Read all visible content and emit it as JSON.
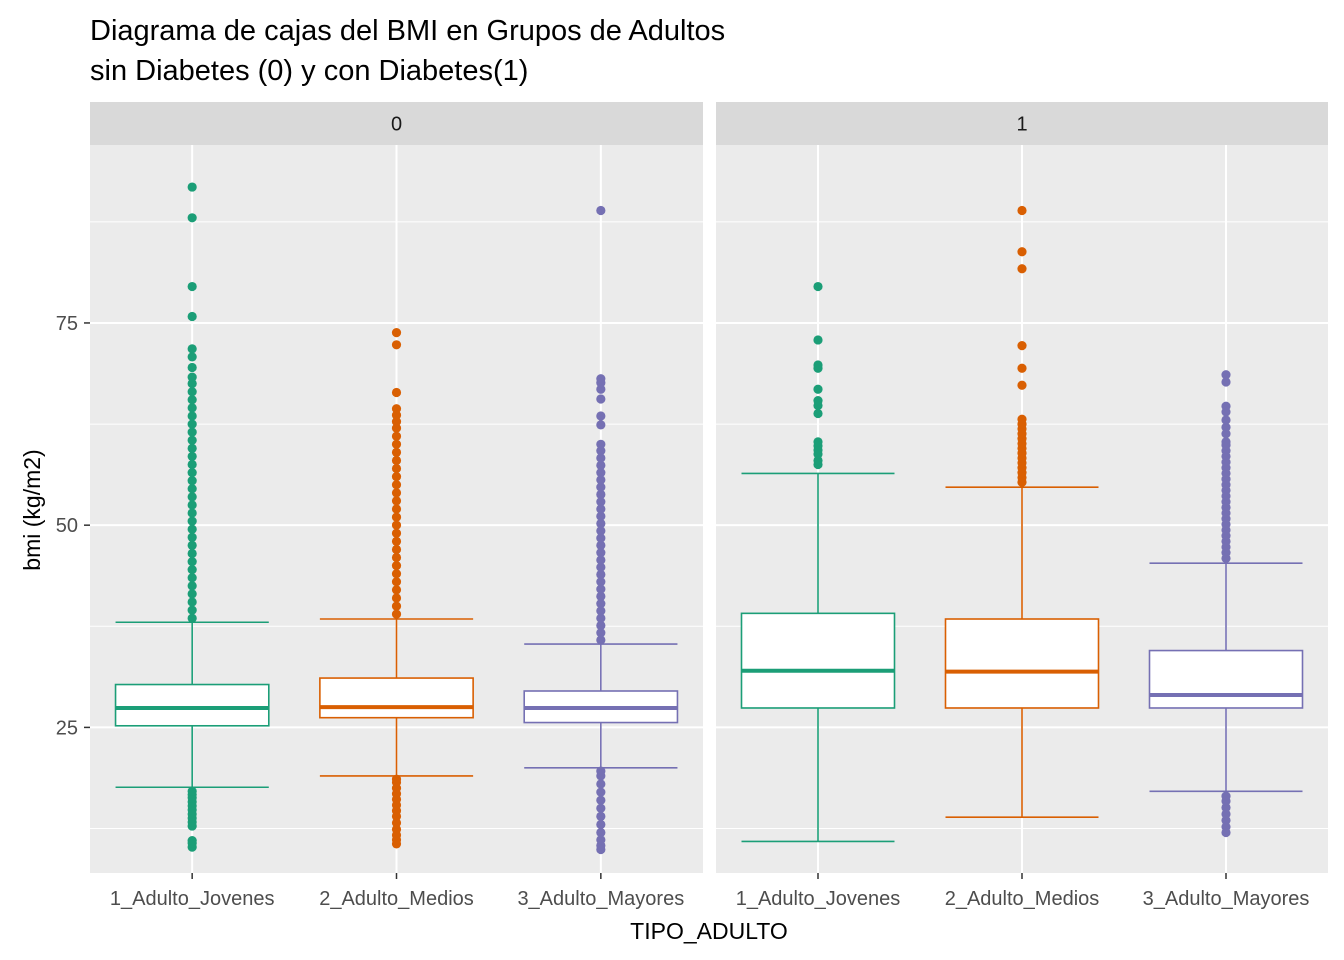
{
  "chart_data": {
    "type": "boxplot",
    "title_lines": [
      "Diagrama de cajas del BMI en Grupos de Adultos",
      "sin Diabetes (0) y con Diabetes(1)"
    ],
    "xlabel": "TIPO_ADULTO",
    "ylabel": "bmi (kg/m2)",
    "ylim": [
      7,
      97
    ],
    "yticks": [
      25,
      50,
      75
    ],
    "grid": true,
    "legend": "none",
    "categories": [
      "1_Adulto_Jovenes",
      "2_Adulto_Medios",
      "3_Adulto_Mayores"
    ],
    "colors": [
      "#1b9e77",
      "#d95f02",
      "#7570b3"
    ],
    "panels": [
      {
        "label": "0",
        "boxes": [
          {
            "category": "1_Adulto_Jovenes",
            "whisker_low": 17.6,
            "q1": 25.2,
            "median": 27.4,
            "q3": 30.3,
            "whisker_high": 38.0,
            "outliers_low": [
              10.2,
              10.7,
              11.0,
              12.8,
              13.3,
              13.8,
              14.3,
              14.8,
              15.3,
              15.8,
              16.3,
              16.7,
              17.1
            ],
            "outliers_high": [
              38.5,
              39.5,
              40.5,
              41.5,
              42.5,
              43.5,
              44.5,
              45.5,
              46.5,
              47.5,
              48.5,
              49.5,
              50.5,
              51.5,
              52.5,
              53.5,
              54.5,
              55.5,
              56.5,
              57.5,
              58.5,
              59.5,
              60.5,
              61.5,
              62.5,
              63.5,
              64.5,
              65.5,
              66.5,
              67.5,
              68.3,
              69.5,
              70.8,
              71.8,
              75.8,
              79.5,
              88.0,
              91.8
            ]
          },
          {
            "category": "2_Adulto_Medios",
            "whisker_low": 19.0,
            "q1": 26.2,
            "median": 27.5,
            "q3": 31.1,
            "whisker_high": 38.4,
            "outliers_low": [
              10.6,
              11.1,
              11.7,
              12.4,
              13.2,
              14.0,
              14.7,
              15.4,
              16.1,
              16.8,
              17.5,
              18.2,
              18.6
            ],
            "outliers_high": [
              39.0,
              40.0,
              41.0,
              42.0,
              43.0,
              44.0,
              45.0,
              46.0,
              47.0,
              48.0,
              49.0,
              50.0,
              51.0,
              52.0,
              53.0,
              54.0,
              55.0,
              56.0,
              57.0,
              58.0,
              59.0,
              60.0,
              61.0,
              62.0,
              62.8,
              63.6,
              64.4,
              66.4,
              72.3,
              73.8
            ]
          },
          {
            "category": "3_Adulto_Mayores",
            "whisker_low": 20.0,
            "q1": 25.6,
            "median": 27.4,
            "q3": 29.5,
            "whisker_high": 35.3,
            "outliers_low": [
              9.9,
              10.4,
              11.1,
              12.0,
              13.0,
              14.0,
              15.0,
              16.0,
              17.0,
              18.0,
              19.0,
              19.6
            ],
            "outliers_high": [
              35.8,
              36.7,
              37.6,
              38.5,
              39.4,
              40.3,
              41.2,
              42.1,
              43.0,
              43.9,
              44.8,
              45.7,
              46.6,
              47.5,
              48.4,
              49.3,
              50.2,
              51.1,
              52.0,
              52.9,
              53.8,
              54.7,
              55.6,
              56.5,
              57.4,
              58.3,
              59.2,
              60.0,
              62.4,
              63.5,
              65.6,
              66.8,
              67.6,
              68.1,
              88.9
            ]
          }
        ]
      },
      {
        "label": "1",
        "boxes": [
          {
            "category": "1_Adulto_Jovenes",
            "whisker_low": 10.9,
            "q1": 27.4,
            "median": 32.0,
            "q3": 39.1,
            "whisker_high": 56.4,
            "outliers_low": [],
            "outliers_high": [
              57.5,
              58.0,
              58.8,
              59.3,
              59.8,
              60.3,
              63.8,
              64.8,
              65.4,
              66.8,
              69.4,
              69.8,
              72.9,
              79.5
            ]
          },
          {
            "category": "2_Adulto_Medios",
            "whisker_low": 13.9,
            "q1": 27.4,
            "median": 31.9,
            "q3": 38.4,
            "whisker_high": 54.7,
            "outliers_low": [],
            "outliers_high": [
              55.3,
              55.9,
              56.5,
              57.1,
              57.7,
              58.3,
              58.9,
              59.5,
              60.1,
              60.7,
              61.3,
              61.9,
              62.5,
              63.1,
              67.3,
              69.4,
              72.2,
              81.7,
              83.8,
              88.9
            ]
          },
          {
            "category": "3_Adulto_Mayores",
            "whisker_low": 17.1,
            "q1": 27.4,
            "median": 29.0,
            "q3": 34.5,
            "whisker_high": 45.3,
            "outliers_low": [
              12.0,
              12.7,
              13.5,
              14.3,
              15.1,
              15.9,
              16.5
            ],
            "outliers_high": [
              45.9,
              46.6,
              47.3,
              48.0,
              48.7,
              49.4,
              50.1,
              50.8,
              51.5,
              52.2,
              52.9,
              53.6,
              54.3,
              55.0,
              55.7,
              56.4,
              57.1,
              57.8,
              58.5,
              59.2,
              59.9,
              60.3,
              61.3,
              62.1,
              63.0,
              64.0,
              64.7,
              67.7,
              68.6
            ]
          }
        ]
      }
    ]
  }
}
